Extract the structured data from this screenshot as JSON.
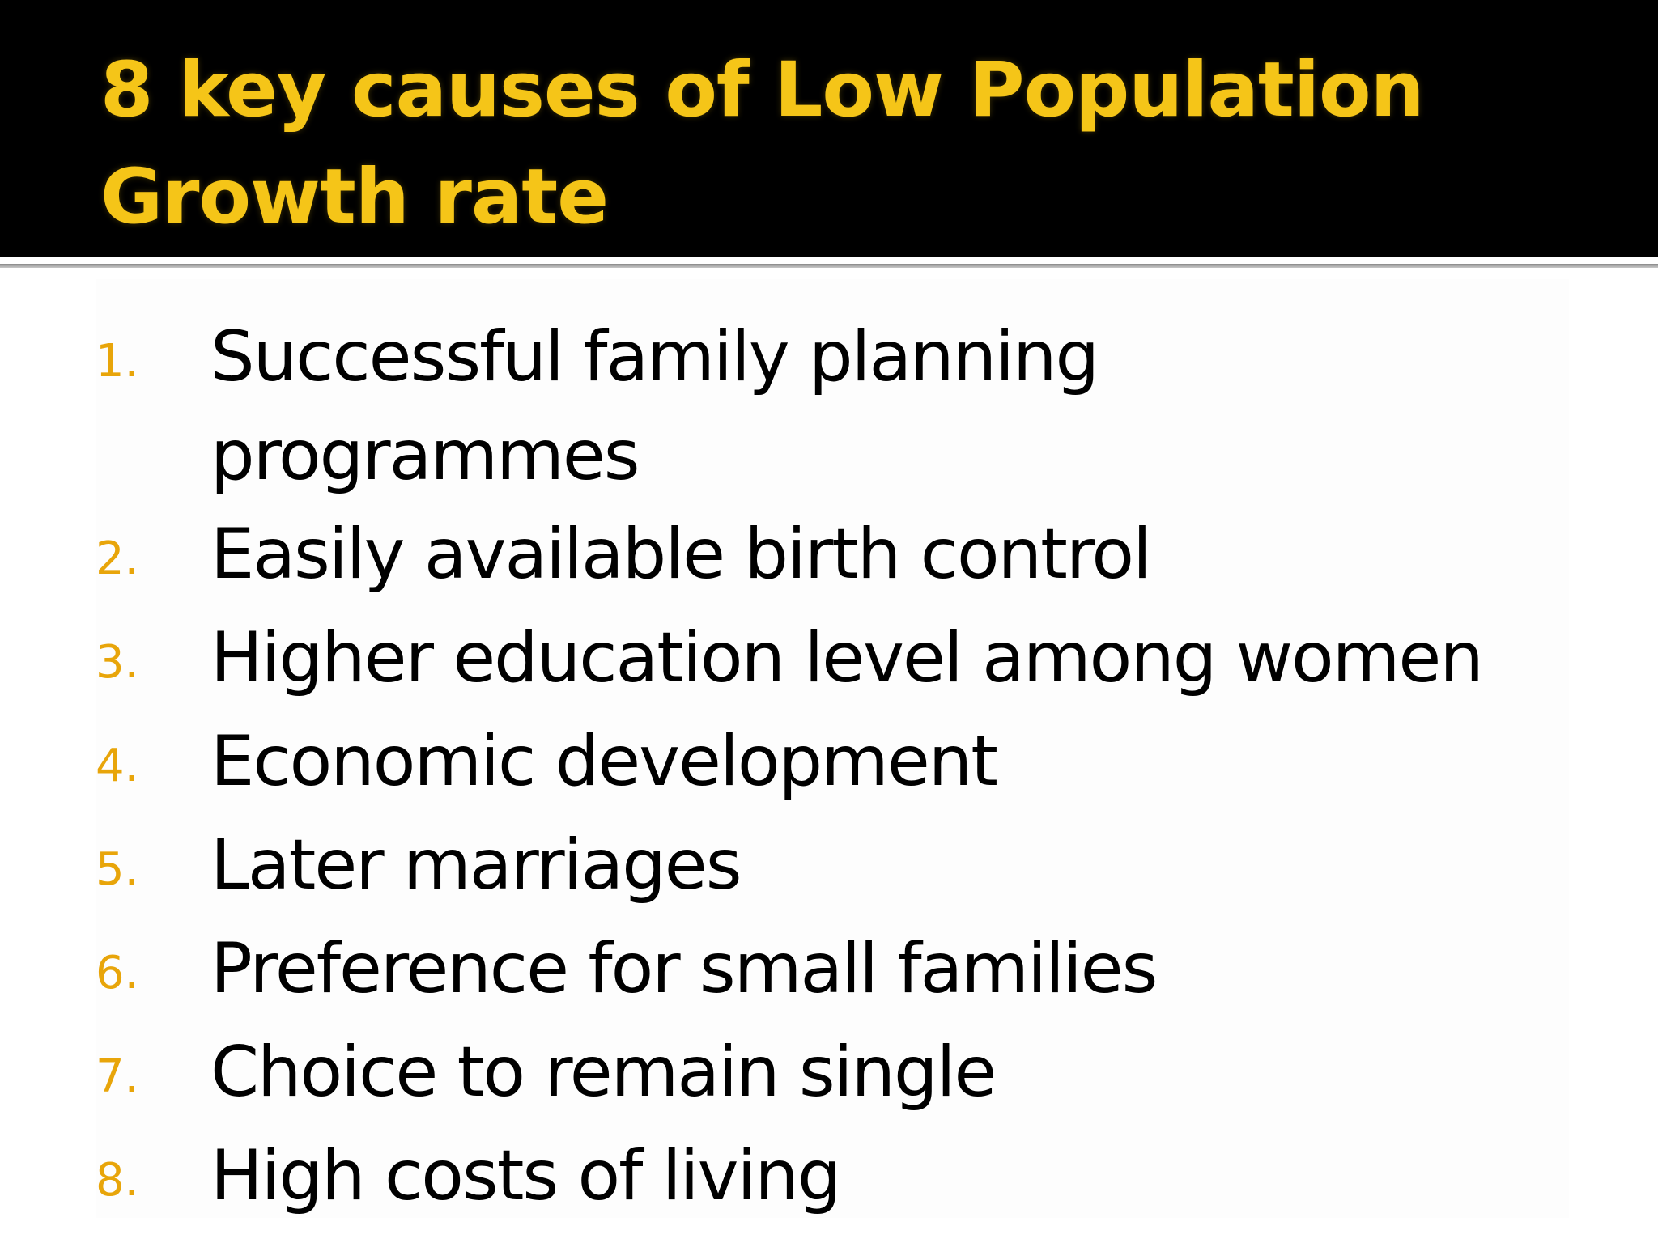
{
  "slide": {
    "title": "8 key causes of Low Population Growth rate",
    "title_color": "#f5c518",
    "number_color": "#e8a50a",
    "causes": [
      {
        "number": "1.",
        "text": "Successful family planning programmes"
      },
      {
        "number": "2.",
        "text": "Easily available birth control"
      },
      {
        "number": "3.",
        "text": "Higher education level among women"
      },
      {
        "number": "4.",
        "text": "Economic development"
      },
      {
        "number": "5.",
        "text": "Later marriages"
      },
      {
        "number": "6.",
        "text": "Preference for small families"
      },
      {
        "number": "7.",
        "text": "Choice to remain single"
      },
      {
        "number": "8.",
        "text": "High costs of living"
      }
    ]
  }
}
